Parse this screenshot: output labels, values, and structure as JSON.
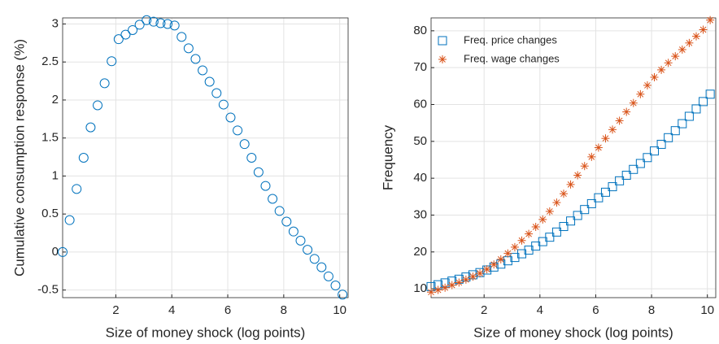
{
  "chart_data": [
    {
      "type": "scatter",
      "xlabel": "Size of money shock (log points)",
      "ylabel": "Cumulative consumption response (%)",
      "xlim": [
        0.1,
        10.3
      ],
      "ylim": [
        -0.6,
        3.08
      ],
      "xticks": [
        2,
        4,
        6,
        8,
        10
      ],
      "yticks": [
        -0.5,
        0,
        0.5,
        1,
        1.5,
        2,
        2.5,
        3
      ],
      "grid": true,
      "series": [
        {
          "marker": "circle",
          "color": "#0072bd",
          "x": [
            0.1,
            0.35,
            0.6,
            0.85,
            1.1,
            1.35,
            1.6,
            1.85,
            2.1,
            2.35,
            2.6,
            2.85,
            3.1,
            3.35,
            3.6,
            3.85,
            4.1,
            4.35,
            4.6,
            4.85,
            5.1,
            5.35,
            5.6,
            5.85,
            6.1,
            6.35,
            6.6,
            6.85,
            7.1,
            7.35,
            7.6,
            7.85,
            8.1,
            8.35,
            8.6,
            8.85,
            9.1,
            9.35,
            9.6,
            9.85,
            10.1
          ],
          "values": [
            0,
            0.42,
            0.83,
            1.24,
            1.64,
            1.93,
            2.22,
            2.51,
            2.8,
            2.86,
            2.92,
            2.99,
            3.05,
            3.03,
            3.01,
            3,
            2.98,
            2.83,
            2.68,
            2.54,
            2.39,
            2.24,
            2.09,
            1.94,
            1.77,
            1.6,
            1.42,
            1.24,
            1.05,
            0.87,
            0.7,
            0.54,
            0.4,
            0.27,
            0.15,
            0.03,
            -0.09,
            -0.2,
            -0.32,
            -0.44,
            -0.56
          ]
        }
      ]
    },
    {
      "type": "scatter",
      "xlabel": "Size of money shock (log points)",
      "ylabel": "Frequency",
      "xlim": [
        0.1,
        10.3
      ],
      "ylim": [
        7.6,
        83.5
      ],
      "xticks": [
        2,
        4,
        6,
        8,
        10
      ],
      "yticks": [
        10,
        20,
        30,
        40,
        50,
        60,
        70,
        80
      ],
      "grid": true,
      "legend": "northwest",
      "series": [
        {
          "name": "Freq. price changes",
          "marker": "square",
          "color": "#0072bd",
          "x": [
            0.1,
            0.35,
            0.6,
            0.85,
            1.1,
            1.35,
            1.6,
            1.85,
            2.1,
            2.35,
            2.6,
            2.85,
            3.1,
            3.35,
            3.6,
            3.85,
            4.1,
            4.35,
            4.6,
            4.85,
            5.1,
            5.35,
            5.6,
            5.85,
            6.1,
            6.35,
            6.6,
            6.85,
            7.1,
            7.35,
            7.6,
            7.85,
            8.1,
            8.35,
            8.6,
            8.85,
            9.1,
            9.35,
            9.6,
            9.85,
            10.1
          ],
          "values": [
            10.6,
            11.1,
            11.6,
            12.1,
            12.6,
            13.2,
            13.8,
            14.4,
            15.1,
            15.9,
            16.7,
            17.6,
            18.5,
            19.5,
            20.5,
            21.6,
            22.8,
            24,
            25.4,
            26.9,
            28.4,
            29.9,
            31.5,
            33.1,
            34.7,
            36.2,
            37.7,
            39.3,
            40.8,
            42.4,
            44,
            45.6,
            47.4,
            49.2,
            51,
            52.9,
            54.8,
            56.8,
            58.8,
            60.8,
            62.8
          ]
        },
        {
          "name": "Freq. wage changes",
          "marker": "asterisk",
          "color": "#d95319",
          "x": [
            0.1,
            0.35,
            0.6,
            0.85,
            1.1,
            1.35,
            1.6,
            1.85,
            2.1,
            2.35,
            2.6,
            2.85,
            3.1,
            3.35,
            3.6,
            3.85,
            4.1,
            4.35,
            4.6,
            4.85,
            5.1,
            5.35,
            5.6,
            5.85,
            6.1,
            6.35,
            6.6,
            6.85,
            7.1,
            7.35,
            7.6,
            7.85,
            8.1,
            8.35,
            8.6,
            8.85,
            9.1,
            9.35,
            9.6,
            9.85,
            10.1
          ],
          "values": [
            9.1,
            9.7,
            10.3,
            11,
            11.7,
            12.5,
            13.3,
            14.2,
            15.3,
            16.6,
            18,
            19.6,
            21.3,
            23.1,
            24.9,
            26.8,
            28.8,
            31,
            33.4,
            35.8,
            38.3,
            40.8,
            43.3,
            45.8,
            48.3,
            50.8,
            53.2,
            55.6,
            58,
            60.4,
            62.8,
            65.2,
            67.4,
            69.4,
            71.3,
            73.1,
            74.9,
            76.7,
            78.5,
            80.3,
            82.9
          ]
        }
      ]
    }
  ]
}
